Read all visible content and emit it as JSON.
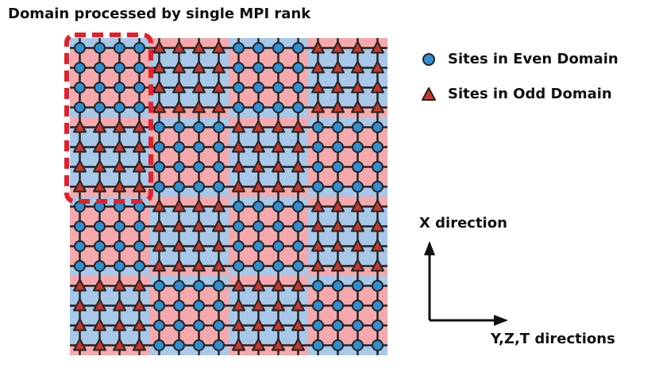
{
  "title": "Domain processed by single MPI rank",
  "legend": {
    "even_label": "Sites in Even Domain",
    "odd_label": "Sites in Odd  Domain"
  },
  "axes": {
    "x_label": "X direction",
    "yzt_label": "Y,Z,T directions"
  },
  "grid": {
    "blocks_x": 4,
    "blocks_y": 4,
    "sites_per_block": 4
  },
  "colors": {
    "pink": "#f5a9ac",
    "blue": "#a7c8e8",
    "circle": "#2f8fd0",
    "triangle": "#c8382c",
    "line": "#222222",
    "highlight": "#e3202c"
  }
}
